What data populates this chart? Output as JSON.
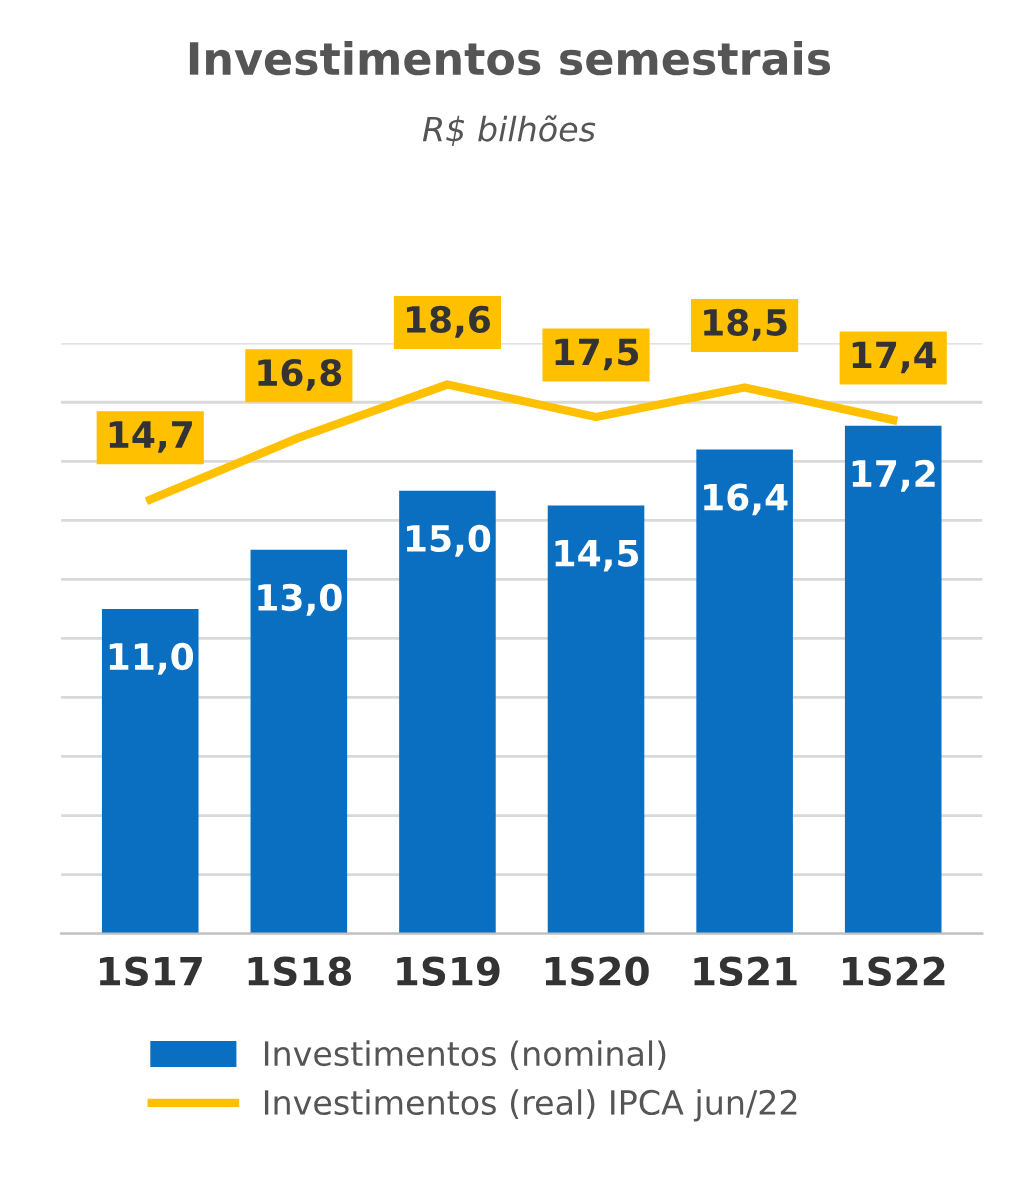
{
  "chart_data": {
    "type": "bar",
    "title": "Investimentos semestrais",
    "subtitle": "R$ bilhões",
    "categories": [
      "1S17",
      "1S18",
      "1S19",
      "1S20",
      "1S21",
      "1S22"
    ],
    "series": [
      {
        "name": "Investimentos (nominal)",
        "color": "#0b6fc1",
        "values": [
          11.0,
          13.0,
          15.0,
          14.5,
          16.4,
          17.2
        ],
        "value_labels": [
          "11,0",
          "13,0",
          "15,0",
          "14,5",
          "16,4",
          "17,2"
        ]
      },
      {
        "name": "Investimentos (real) IPCA jun/22",
        "type": "line",
        "color": "#ffc000",
        "values": [
          14.7,
          16.8,
          18.6,
          17.5,
          18.5,
          17.4
        ],
        "value_labels": [
          "14,7",
          "16,8",
          "18,6",
          "17,5",
          "18,5",
          "17,4"
        ]
      }
    ],
    "ylim": [
      0,
      20
    ],
    "yticks": [
      {
        "value": 0,
        "label": null
      },
      {
        "value": 2,
        "label": null
      },
      {
        "value": 4,
        "label": null
      },
      {
        "value": 6,
        "label": null
      },
      {
        "value": 8,
        "label": null
      },
      {
        "value": 10,
        "label": null
      },
      {
        "value": 12,
        "label": null
      },
      {
        "value": 14,
        "label": null
      },
      {
        "value": 16,
        "label": null
      },
      {
        "value": 18,
        "label": null
      },
      {
        "value": 20,
        "label": null
      }
    ],
    "tick_labels": "x",
    "grid": "y",
    "legend": "bottom",
    "marker": "none",
    "line_style": "solid"
  }
}
